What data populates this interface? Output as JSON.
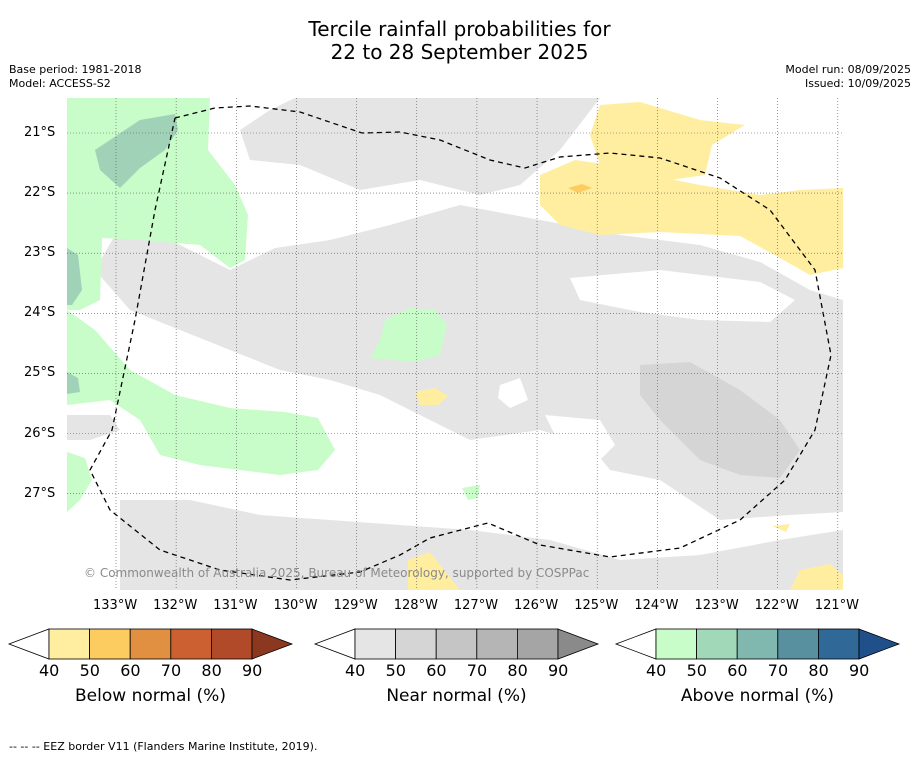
{
  "title": {
    "line1": "Tercile rainfall probabilities for",
    "line2": "22 to 28 September 2025"
  },
  "meta": {
    "base_period": "Base period: 1981-2018",
    "model": "Model: ACCESS-S2",
    "model_run": "Model run: 08/09/2025",
    "issued": "Issued: 10/09/2025"
  },
  "axes": {
    "lat_labels": [
      "21°S",
      "22°S",
      "23°S",
      "24°S",
      "25°S",
      "26°S",
      "27°S"
    ],
    "lon_labels": [
      "133°W",
      "132°W",
      "131°W",
      "130°W",
      "129°W",
      "128°W",
      "127°W",
      "126°W",
      "125°W",
      "124°W",
      "123°W",
      "122°W",
      "121°W"
    ]
  },
  "copyright": "© Commonwealth of Australia 2025, Bureau of Meteorology, supported by COSPPac",
  "colorbars": [
    {
      "title": "Below normal (%)",
      "ticks": [
        "40",
        "50",
        "60",
        "70",
        "80",
        "90"
      ],
      "colors": [
        "#ffeea0",
        "#fdcc60",
        "#e09040",
        "#cc6030",
        "#b04a28",
        "#8c3820"
      ]
    },
    {
      "title": "Near normal (%)",
      "ticks": [
        "40",
        "50",
        "60",
        "70",
        "80",
        "90"
      ],
      "colors": [
        "#e5e5e5",
        "#d5d5d5",
        "#c5c5c5",
        "#b5b5b5",
        "#a5a5a5",
        "#8a8a8a"
      ]
    },
    {
      "title": "Above normal (%)",
      "ticks": [
        "40",
        "50",
        "60",
        "70",
        "80",
        "90"
      ],
      "colors": [
        "#c8fcc8",
        "#a0d8b8",
        "#80b8b0",
        "#5890a0",
        "#306898",
        "#20508a"
      ]
    }
  ],
  "footnote": "-- -- -- EEZ border V11 (Flanders Marine Institute, 2019)."
}
